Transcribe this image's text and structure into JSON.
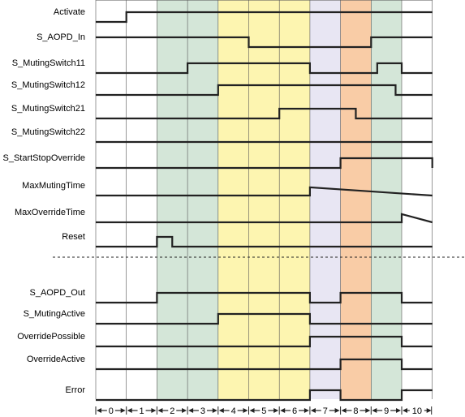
{
  "colors": {
    "green": "#d4e6d8",
    "yellow": "#fdf5b0",
    "lavender": "#e8e6f3",
    "orange": "#f9cca6",
    "white": "#ffffff",
    "wave": "#222222",
    "grid": "#555555"
  },
  "phases": [
    {
      "label": "0",
      "color": "white"
    },
    {
      "label": "1",
      "color": "white"
    },
    {
      "label": "2",
      "color": "green"
    },
    {
      "label": "3",
      "color": "green"
    },
    {
      "label": "4",
      "color": "yellow"
    },
    {
      "label": "5",
      "color": "yellow"
    },
    {
      "label": "6",
      "color": "yellow"
    },
    {
      "label": "7",
      "color": "lavender"
    },
    {
      "label": "8",
      "color": "orange"
    },
    {
      "label": "9",
      "color": "green"
    },
    {
      "label": "10",
      "color": "white"
    }
  ],
  "signals_top": [
    {
      "label": "Activate",
      "name": "activate",
      "wave": [
        [
          0,
          0
        ],
        [
          1,
          1
        ]
      ]
    },
    {
      "label": "S_AOPD_In",
      "name": "s-aopd-in",
      "wave": [
        [
          0,
          1
        ],
        [
          5,
          0
        ],
        [
          9,
          1
        ]
      ]
    },
    {
      "label": "S_MutingSwitch11",
      "name": "s-mutingswitch11",
      "wave": [
        [
          0,
          0
        ],
        [
          3,
          1
        ],
        [
          7,
          0
        ],
        [
          9.2,
          1
        ],
        [
          10,
          0
        ]
      ]
    },
    {
      "label": "S_MutingSwitch12",
      "name": "s-mutingswitch12",
      "wave": [
        [
          0,
          0
        ],
        [
          4,
          1
        ],
        [
          9.8,
          0
        ]
      ]
    },
    {
      "label": "S_MutingSwitch21",
      "name": "s-mutingswitch21",
      "wave": [
        [
          0,
          0
        ],
        [
          6,
          1
        ],
        [
          8.5,
          0
        ]
      ]
    },
    {
      "label": "S_MutingSwitch22",
      "name": "s-mutingswitch22",
      "wave": [
        [
          0,
          0
        ]
      ]
    },
    {
      "label": "S_StartStopOverride",
      "name": "s-startstopoverride",
      "wave": [
        [
          0,
          0
        ],
        [
          8,
          1
        ],
        [
          11,
          0
        ]
      ]
    },
    {
      "label": "MaxMutingTime",
      "name": "maxmutingtime",
      "ramp": [
        [
          0,
          0,
          0
        ],
        [
          3,
          0,
          0
        ],
        [
          7,
          0,
          0.6
        ],
        [
          7,
          0.6,
          0
        ],
        [
          11,
          0,
          0
        ]
      ]
    },
    {
      "label": "MaxOverrideTime",
      "name": "maxoverridetime",
      "ramp": [
        [
          0,
          0,
          0
        ],
        [
          8,
          0,
          0
        ],
        [
          10,
          0,
          0.6
        ],
        [
          10,
          0.6,
          0
        ],
        [
          11,
          0,
          0
        ]
      ]
    },
    {
      "label": "Reset",
      "name": "reset",
      "wave": [
        [
          0,
          0
        ],
        [
          2,
          1
        ],
        [
          2.5,
          0
        ]
      ]
    }
  ],
  "signals_bottom": [
    {
      "label": "S_AOPD_Out",
      "name": "s-aopd-out",
      "wave": [
        [
          0,
          0
        ],
        [
          2,
          1
        ],
        [
          7,
          0
        ],
        [
          8,
          1
        ],
        [
          10,
          0
        ]
      ]
    },
    {
      "label": "S_MutingActive",
      "name": "s-mutingactive",
      "wave": [
        [
          0,
          0
        ],
        [
          4,
          1
        ],
        [
          7,
          0
        ]
      ]
    },
    {
      "label": "OverridePossible",
      "name": "overridepossible",
      "wave": [
        [
          0,
          0
        ],
        [
          7,
          1
        ],
        [
          10,
          0
        ]
      ]
    },
    {
      "label": "OverrideActive",
      "name": "overrideactive",
      "wave": [
        [
          0,
          0
        ],
        [
          8,
          1
        ],
        [
          10,
          0
        ]
      ]
    },
    {
      "label": "Error",
      "name": "error",
      "wave": [
        [
          0,
          0
        ],
        [
          7,
          1
        ],
        [
          8,
          0
        ],
        [
          10,
          1
        ]
      ]
    }
  ]
}
